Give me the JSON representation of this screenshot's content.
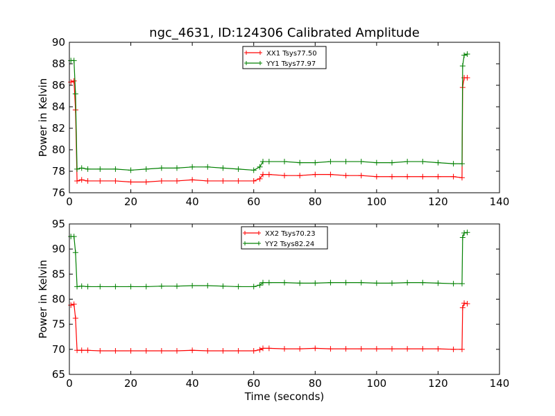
{
  "chart_data": [
    {
      "type": "line",
      "title": "ngc_4631, ID:124306 Calibrated Amplitude",
      "xlabel": "",
      "ylabel": "Power in Kelvin",
      "xlim": [
        0,
        140
      ],
      "ylim": [
        76,
        90
      ],
      "xticks": [
        0,
        20,
        40,
        60,
        80,
        100,
        120,
        140
      ],
      "yticks": [
        76,
        78,
        80,
        82,
        84,
        86,
        88,
        90
      ],
      "grid": false,
      "legend_position": "upper-center",
      "series": [
        {
          "name": "XX1 Tsys77.50",
          "color": "#ff0000",
          "x": [
            0.5,
            1.5,
            2,
            2.5,
            4,
            6,
            10,
            15,
            20,
            25,
            30,
            35,
            40,
            45,
            50,
            55,
            60,
            62,
            63,
            65,
            70,
            75,
            80,
            85,
            90,
            95,
            100,
            105,
            110,
            115,
            120,
            125,
            127.8,
            128,
            128.5,
            129.5
          ],
          "values": [
            86.3,
            86.4,
            83.7,
            77.1,
            77.2,
            77.1,
            77.1,
            77.1,
            77.0,
            77.0,
            77.1,
            77.1,
            77.2,
            77.1,
            77.1,
            77.1,
            77.1,
            77.3,
            77.7,
            77.7,
            77.6,
            77.6,
            77.7,
            77.7,
            77.6,
            77.6,
            77.5,
            77.5,
            77.5,
            77.5,
            77.5,
            77.5,
            77.4,
            85.8,
            86.7,
            86.7
          ]
        },
        {
          "name": "YY1 Tsys77.97",
          "color": "#008000",
          "x": [
            0.5,
            1.5,
            2,
            2.5,
            4,
            6,
            10,
            15,
            20,
            25,
            30,
            35,
            40,
            45,
            50,
            55,
            60,
            62,
            63,
            65,
            70,
            75,
            80,
            85,
            90,
            95,
            100,
            105,
            110,
            115,
            120,
            125,
            127.8,
            128,
            128.5,
            129.5
          ],
          "values": [
            88.3,
            88.3,
            85.2,
            78.2,
            78.3,
            78.2,
            78.2,
            78.2,
            78.1,
            78.2,
            78.3,
            78.3,
            78.4,
            78.4,
            78.3,
            78.2,
            78.1,
            78.4,
            78.9,
            78.9,
            78.9,
            78.8,
            78.8,
            78.9,
            78.9,
            78.9,
            78.8,
            78.8,
            78.9,
            78.9,
            78.8,
            78.7,
            78.7,
            87.8,
            88.8,
            88.9
          ]
        }
      ]
    },
    {
      "type": "line",
      "title": "",
      "xlabel": "Time (seconds)",
      "ylabel": "Power in Kelvin",
      "xlim": [
        0,
        140
      ],
      "ylim": [
        65,
        95
      ],
      "xticks": [
        0,
        20,
        40,
        60,
        80,
        100,
        120,
        140
      ],
      "yticks": [
        65,
        70,
        75,
        80,
        85,
        90,
        95
      ],
      "grid": false,
      "legend_position": "upper-center",
      "series": [
        {
          "name": "XX2 Tsys70.23",
          "color": "#ff0000",
          "x": [
            0.5,
            1.5,
            2,
            2.5,
            4,
            6,
            10,
            15,
            20,
            25,
            30,
            35,
            40,
            45,
            50,
            55,
            60,
            62,
            63,
            65,
            70,
            75,
            80,
            85,
            90,
            95,
            100,
            105,
            110,
            115,
            120,
            125,
            127.8,
            128,
            128.5,
            129.5
          ],
          "values": [
            78.8,
            79.0,
            76.2,
            69.8,
            69.8,
            69.8,
            69.7,
            69.7,
            69.7,
            69.7,
            69.7,
            69.7,
            69.8,
            69.7,
            69.7,
            69.7,
            69.7,
            69.9,
            70.2,
            70.2,
            70.1,
            70.1,
            70.2,
            70.1,
            70.1,
            70.1,
            70.1,
            70.1,
            70.1,
            70.1,
            70.1,
            70.0,
            70.0,
            78.3,
            79.2,
            79.1
          ]
        },
        {
          "name": "YY2 Tsys82.24",
          "color": "#008000",
          "x": [
            0.5,
            1.5,
            2,
            2.5,
            4,
            6,
            10,
            15,
            20,
            25,
            30,
            35,
            40,
            45,
            50,
            55,
            60,
            62,
            63,
            65,
            70,
            75,
            80,
            85,
            90,
            95,
            100,
            105,
            110,
            115,
            120,
            125,
            127.8,
            128,
            128.5,
            129.5
          ],
          "values": [
            92.5,
            92.5,
            89.3,
            82.5,
            82.6,
            82.5,
            82.5,
            82.5,
            82.5,
            82.5,
            82.6,
            82.6,
            82.7,
            82.7,
            82.6,
            82.5,
            82.5,
            82.8,
            83.3,
            83.3,
            83.3,
            83.2,
            83.2,
            83.3,
            83.3,
            83.3,
            83.2,
            83.2,
            83.3,
            83.3,
            83.2,
            83.1,
            83.1,
            92.3,
            93.2,
            93.3
          ]
        }
      ]
    }
  ]
}
